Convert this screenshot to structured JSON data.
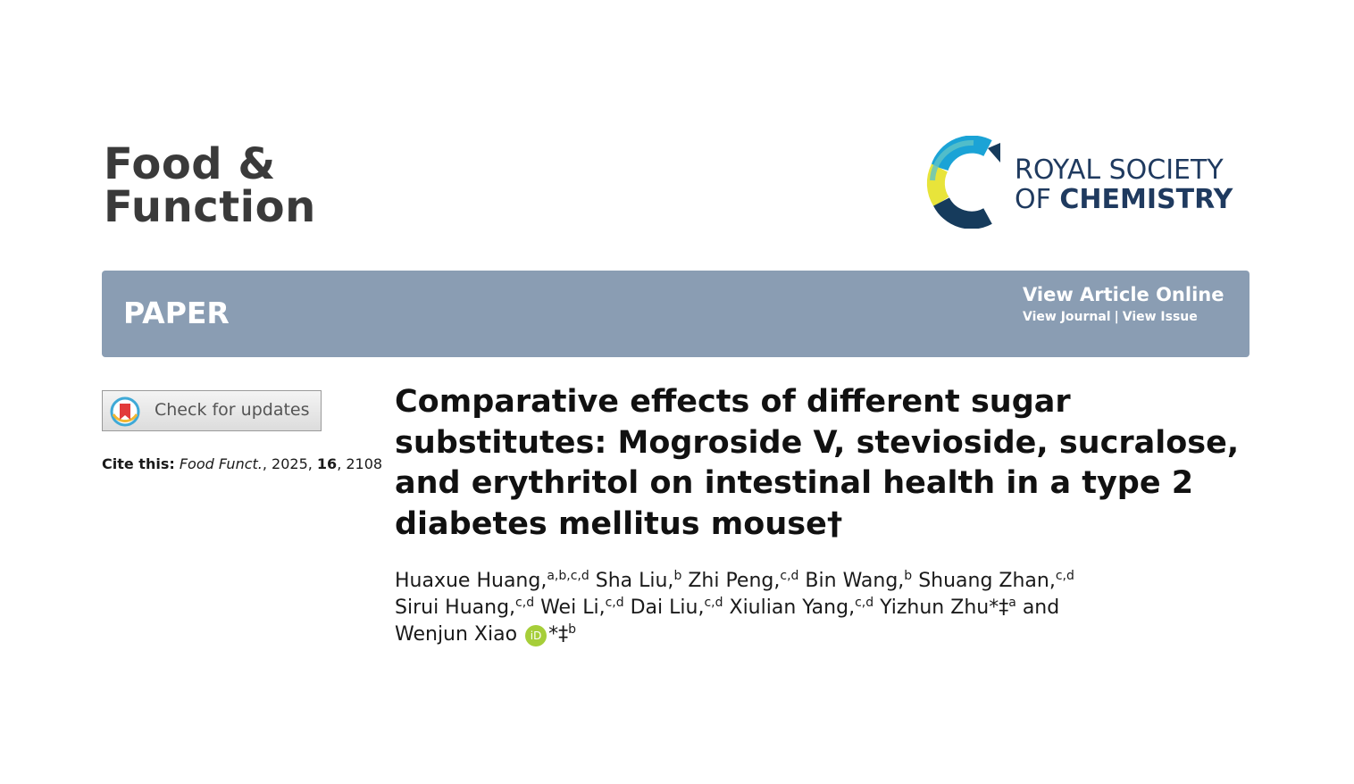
{
  "header": {
    "journal_line1": "Food &",
    "journal_line2": "Function",
    "publisher_line1": "ROYAL SOCIETY",
    "publisher_line2_prefix": "OF ",
    "publisher_line2_bold": "CHEMISTRY"
  },
  "banner": {
    "label": "PAPER",
    "view_online": "View Article Online",
    "view_journal": "View Journal",
    "separator": "|",
    "view_issue": "View Issue",
    "color": "#8a9db3"
  },
  "sidebar": {
    "check_updates": "Check for updates",
    "cite_label": "Cite this:",
    "cite_journal": "Food Funct.",
    "cite_year": ", 2025, ",
    "cite_volume": "16",
    "cite_page": ", 2108"
  },
  "article": {
    "title": "Comparative effects of different sugar substitutes: Mogroside V, stevioside, sucralose, and erythritol on intestinal health in a type 2 diabetes mellitus mouse†"
  },
  "authors": [
    {
      "name": "Huaxue Huang,",
      "sup": "a,b,c,d"
    },
    {
      "name": "Sha Liu,",
      "sup": "b"
    },
    {
      "name": "Zhi Peng,",
      "sup": "c,d"
    },
    {
      "name": "Bin Wang,",
      "sup": "b"
    },
    {
      "name": "Shuang Zhan,",
      "sup": "c,d"
    },
    {
      "name": "Sirui Huang,",
      "sup": "c,d"
    },
    {
      "name": "Wei Li,",
      "sup": "c,d"
    },
    {
      "name": "Dai Liu,",
      "sup": "c,d"
    },
    {
      "name": "Xiulian Yang,",
      "sup": "c,d"
    },
    {
      "name": "Yizhun Zhu*‡",
      "sup": "a"
    },
    {
      "name": "and",
      "sup": ""
    },
    {
      "name": "Wenjun Xiao",
      "sup": "b",
      "orcid": "iD",
      "after_orcid": "*‡"
    }
  ],
  "icons": {
    "rsc_logo": "rsc-logo-icon",
    "check_updates": "bookmark-icon",
    "orcid": "orcid-icon"
  }
}
